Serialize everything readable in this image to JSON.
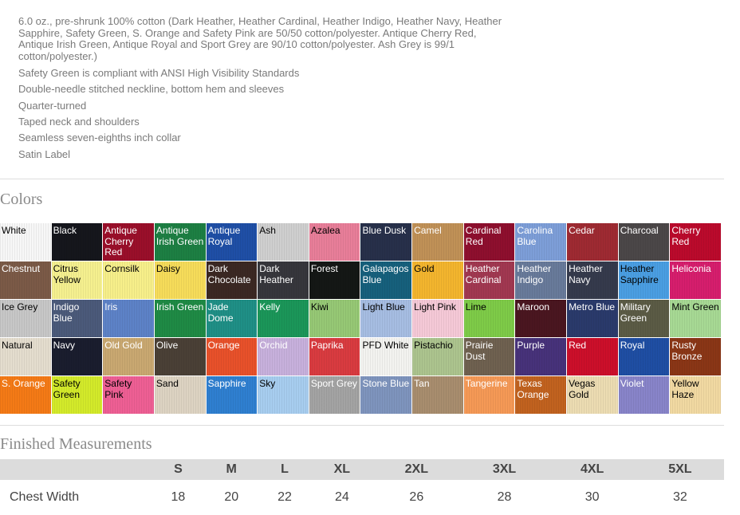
{
  "description": "6.0 oz., pre-shrunk 100% cotton (Dark Heather, Heather Cardinal, Heather Indigo, Heather Navy, Heather Sapphire, Safety Green, S. Orange and Safety Pink are 50/50 cotton/polyester. Antique Cherry Red, Antique Irish Green, Antique Royal and Sport Grey are 90/10 cotton/polyester. Ash Grey is 99/1 cotton/polyester.)",
  "features": [
    "Safety Green is compliant with ANSI High Visibility Standards",
    "Double-needle stitched neckline, bottom hem and sleeves",
    "Quarter-turned",
    "Taped neck and shoulders",
    "Seamless seven-eighths inch collar",
    "Satin Label"
  ],
  "colors_title": "Colors",
  "colors": [
    {
      "name": "White",
      "hex": "#f7f7f7",
      "text": "#000"
    },
    {
      "name": "Black",
      "hex": "#15161c",
      "text": "#fff"
    },
    {
      "name": "Antique Cherry Red",
      "hex": "#9a0f2a",
      "text": "#fff"
    },
    {
      "name": "Antique Irish Green",
      "hex": "#1d7f43",
      "text": "#fff"
    },
    {
      "name": "Antique Royal",
      "hex": "#1f4fa6",
      "text": "#fff"
    },
    {
      "name": "Ash",
      "hex": "#cfcfcf",
      "text": "#000"
    },
    {
      "name": "Azalea",
      "hex": "#e87e99",
      "text": "#000"
    },
    {
      "name": "Blue Dusk",
      "hex": "#27304a",
      "text": "#fff"
    },
    {
      "name": "Camel",
      "hex": "#c09157",
      "text": "#fff"
    },
    {
      "name": "Cardinal Red",
      "hex": "#8e0f2e",
      "text": "#fff"
    },
    {
      "name": "Carolina Blue",
      "hex": "#7d9ed8",
      "text": "#fff"
    },
    {
      "name": "Cedar",
      "hex": "#9e2a32",
      "text": "#fff"
    },
    {
      "name": "Charcoal",
      "hex": "#4b4748",
      "text": "#fff"
    },
    {
      "name": "Cherry Red",
      "hex": "#bb0a2c",
      "text": "#fff"
    },
    {
      "name": "Chestnut",
      "hex": "#7b5a47",
      "text": "#fff"
    },
    {
      "name": "Citrus Yellow",
      "hex": "#f5f08f",
      "text": "#000"
    },
    {
      "name": "Cornsilk",
      "hex": "#f7ef8a",
      "text": "#000"
    },
    {
      "name": "Daisy",
      "hex": "#f6dc5a",
      "text": "#000"
    },
    {
      "name": "Dark Chocolate",
      "hex": "#3b2823",
      "text": "#fff"
    },
    {
      "name": "Dark Heather",
      "hex": "#36363c",
      "text": "#fff"
    },
    {
      "name": "Forest",
      "hex": "#141715",
      "text": "#fff"
    },
    {
      "name": "Galapagos Blue",
      "hex": "#16607c",
      "text": "#fff"
    },
    {
      "name": "Gold",
      "hex": "#f3b52e",
      "text": "#000"
    },
    {
      "name": "Heather Cardinal",
      "hex": "#a13851",
      "text": "#fff"
    },
    {
      "name": "Heather Indigo",
      "hex": "#687a9a",
      "text": "#fff"
    },
    {
      "name": "Heather Navy",
      "hex": "#353a4c",
      "text": "#fff"
    },
    {
      "name": "Heather Sapphire",
      "hex": "#4a9ee2",
      "text": "#000"
    },
    {
      "name": "Heliconia",
      "hex": "#d61e6d",
      "text": "#fff"
    },
    {
      "name": "Ice Grey",
      "hex": "#c7c7c7",
      "text": "#000"
    },
    {
      "name": "Indigo Blue",
      "hex": "#4b5a7a",
      "text": "#fff"
    },
    {
      "name": "Iris",
      "hex": "#5d82c7",
      "text": "#fff"
    },
    {
      "name": "Irish Green",
      "hex": "#1f8a45",
      "text": "#fff"
    },
    {
      "name": "Jade Dome",
      "hex": "#1f8f86",
      "text": "#fff"
    },
    {
      "name": "Kelly",
      "hex": "#1b9659",
      "text": "#fff"
    },
    {
      "name": "Kiwi",
      "hex": "#96c875",
      "text": "#000"
    },
    {
      "name": "Light Blue",
      "hex": "#a6bde2",
      "text": "#000"
    },
    {
      "name": "Light Pink",
      "hex": "#f5c9d7",
      "text": "#000"
    },
    {
      "name": "Lime",
      "hex": "#7ecb48",
      "text": "#000"
    },
    {
      "name": "Maroon",
      "hex": "#4a1620",
      "text": "#fff"
    },
    {
      "name": "Metro Blue",
      "hex": "#2a3a6b",
      "text": "#fff"
    },
    {
      "name": "Military Green",
      "hex": "#5b5b45",
      "text": "#fff"
    },
    {
      "name": "Mint Green",
      "hex": "#a7d994",
      "text": "#000"
    },
    {
      "name": "Natural",
      "hex": "#e4ddce",
      "text": "#000"
    },
    {
      "name": "Navy",
      "hex": "#1a1d2e",
      "text": "#fff"
    },
    {
      "name": "Old Gold",
      "hex": "#c9a871",
      "text": "#fff"
    },
    {
      "name": "Olive",
      "hex": "#4a4036",
      "text": "#fff"
    },
    {
      "name": "Orange",
      "hex": "#e8512a",
      "text": "#fff"
    },
    {
      "name": "Orchid",
      "hex": "#c7b0dc",
      "text": "#fff"
    },
    {
      "name": "Paprika",
      "hex": "#d93b40",
      "text": "#fff"
    },
    {
      "name": "PFD White",
      "hex": "#f3f3f0",
      "text": "#000"
    },
    {
      "name": "Pistachio",
      "hex": "#acc48e",
      "text": "#000"
    },
    {
      "name": "Prairie Dust",
      "hex": "#6f6150",
      "text": "#fff"
    },
    {
      "name": "Purple",
      "hex": "#47327a",
      "text": "#fff"
    },
    {
      "name": "Red",
      "hex": "#cc0f2a",
      "text": "#fff"
    },
    {
      "name": "Royal",
      "hex": "#1f4ea3",
      "text": "#fff"
    },
    {
      "name": "Rusty Bronze",
      "hex": "#8a3616",
      "text": "#fff"
    },
    {
      "name": "S. Orange",
      "hex": "#f47a16",
      "text": "#fff"
    },
    {
      "name": "Safety Green",
      "hex": "#d3ea2a",
      "text": "#000"
    },
    {
      "name": "Safety Pink",
      "hex": "#ee5f94",
      "text": "#000"
    },
    {
      "name": "Sand",
      "hex": "#ddd3c2",
      "text": "#000"
    },
    {
      "name": "Sapphire",
      "hex": "#2f7fd0",
      "text": "#fff"
    },
    {
      "name": "Sky",
      "hex": "#a7cdef",
      "text": "#000"
    },
    {
      "name": "Sport Grey",
      "hex": "#a3a3a3",
      "text": "#fff"
    },
    {
      "name": "Stone Blue",
      "hex": "#7e94bd",
      "text": "#fff"
    },
    {
      "name": "Tan",
      "hex": "#a88d6e",
      "text": "#fff"
    },
    {
      "name": "Tangerine",
      "hex": "#f59956",
      "text": "#fff"
    },
    {
      "name": "Texas Orange",
      "hex": "#c1621f",
      "text": "#fff"
    },
    {
      "name": "Vegas Gold",
      "hex": "#ecdcb2",
      "text": "#000"
    },
    {
      "name": "Violet",
      "hex": "#8884c9",
      "text": "#fff"
    },
    {
      "name": "Yellow Haze",
      "hex": "#f1d9a2",
      "text": "#000"
    }
  ],
  "measurements_title": "Finished Measurements",
  "sizes": [
    "S",
    "M",
    "L",
    "XL",
    "2XL",
    "3XL",
    "4XL",
    "5XL"
  ],
  "rows": [
    {
      "label": "Chest Width",
      "values": [
        "18",
        "20",
        "22",
        "24",
        "26",
        "28",
        "30",
        "32"
      ]
    }
  ]
}
